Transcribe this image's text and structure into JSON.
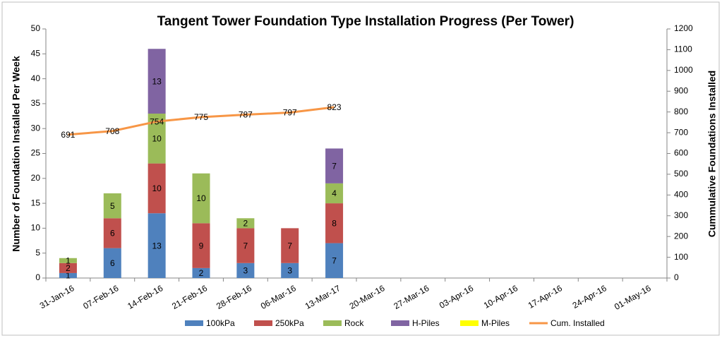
{
  "chart_data": {
    "type": "bar",
    "stacked": true,
    "title": "Tangent Tower Foundation Type Installation Progress (Per Tower)",
    "ylabel": "Number of Foundation Installed Per Week",
    "y2label": "Cummulative Foundations Installed",
    "categories": [
      "31-Jan-16",
      "07-Feb-16",
      "14-Feb-16",
      "21-Feb-16",
      "28-Feb-16",
      "06-Mar-16",
      "13-Mar-17",
      "20-Mar-16",
      "27-Mar-16",
      "03-Apr-16",
      "10-Apr-16",
      "17-Apr-16",
      "24-Apr-16",
      "01-May-16"
    ],
    "series": [
      {
        "name": "100kPa",
        "color": "#4f81bd",
        "values": [
          1,
          6,
          13,
          2,
          3,
          3,
          7,
          null,
          null,
          null,
          null,
          null,
          null,
          null
        ]
      },
      {
        "name": "250kPa",
        "color": "#c0504d",
        "values": [
          2,
          6,
          10,
          9,
          7,
          7,
          8,
          null,
          null,
          null,
          null,
          null,
          null,
          null
        ]
      },
      {
        "name": "Rock",
        "color": "#9bbb59",
        "values": [
          1,
          5,
          10,
          10,
          2,
          null,
          4,
          null,
          null,
          null,
          null,
          null,
          null,
          null
        ]
      },
      {
        "name": "H-Piles",
        "color": "#8064a2",
        "values": [
          null,
          null,
          13,
          null,
          null,
          null,
          7,
          null,
          null,
          null,
          null,
          null,
          null,
          null
        ]
      },
      {
        "name": "M-Piles",
        "color": "#ffff00",
        "values": [
          null,
          null,
          null,
          null,
          null,
          null,
          null,
          null,
          null,
          null,
          null,
          null,
          null,
          null
        ]
      },
      {
        "name": "Cum. Installed",
        "color": "#f79646",
        "type": "line",
        "axis": "y2",
        "values": [
          691,
          708,
          754,
          775,
          787,
          797,
          823,
          null,
          null,
          null,
          null,
          null,
          null,
          null
        ]
      }
    ],
    "ylim": [
      0,
      50
    ],
    "yticks": [
      0,
      5,
      10,
      15,
      20,
      25,
      30,
      35,
      40,
      45,
      50
    ],
    "y2lim": [
      0,
      1200
    ],
    "y2ticks": [
      0,
      100,
      200,
      300,
      400,
      500,
      600,
      700,
      800,
      900,
      1000,
      1100,
      1200
    ],
    "grid": false,
    "legend": "bottom"
  }
}
